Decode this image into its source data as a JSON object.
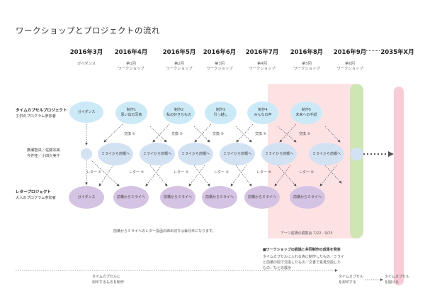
{
  "title": "ワークショップとプロジェクトの流れ",
  "timeline": [
    {
      "year": "2016年3月",
      "sub": "ガイダンス"
    },
    {
      "year": "2016年4月",
      "sub": "第1回\nワークショップ"
    },
    {
      "year": "2016年5月",
      "sub": "第2回\nワークショップ"
    },
    {
      "year": "2016年6月",
      "sub": "第3回\nワークショップ"
    },
    {
      "year": "2016年7月",
      "sub": "第4回\nワークショップ"
    },
    {
      "year": "2016年8月",
      "sub": "第5回\nワークショップ"
    },
    {
      "year": "2016年9月",
      "sub": "第6回\nワークショップ"
    },
    {
      "year": "2035年X月",
      "sub": ""
    }
  ],
  "rows": {
    "timecapsule": {
      "title": "タイムカプセルプロジェクト",
      "sub": "子供のプログラム参加者"
    },
    "instructors": {
      "line1": "廣瀬智央／佐藤宗美",
      "line2": "今井桂／小田久美子"
    },
    "letter": {
      "title": "レタープロジェクト",
      "sub": "大人のプログラム参加者"
    }
  },
  "top_bubbles": [
    {
      "label": "ガイダンス",
      "sub": ""
    },
    {
      "label": "制作1",
      "sub": "思い出の写真"
    },
    {
      "label": "制作2",
      "sub": "私の好きなもの"
    },
    {
      "label": "制作3",
      "sub": "引っ越し"
    },
    {
      "label": "制作4",
      "sub": "みんなの声"
    },
    {
      "label": "制作5",
      "sub": "未来への手紙"
    }
  ],
  "mid_bubbles": [
    "ミライから前橋へ",
    "ミライから前橋へ",
    "ミライから前橋へ",
    "ミライから前橋へ",
    "ミライから前橋へ",
    "ミライから前橋へ"
  ],
  "bottom_bubbles": [
    "ガイダンス",
    "前橋からミライへ",
    "前橋からミライへ",
    "前橋からミライへ",
    "前橋からミライへ",
    "前橋からミライへ"
  ],
  "exchange_labels": [
    "交換 ①",
    "交換 ②",
    "交換 ③",
    "交換 ④",
    "交換 ⑤"
  ],
  "letter_labels": [
    "レター ①",
    "レター ②",
    "レター ③",
    "レター ④",
    "レター ⑤",
    "レター ⑥"
  ],
  "notes": {
    "letter_cut": "前橋からミライへのレター投函の締め切りは毎月末になります。",
    "exhibition": "アーツ前橋の展覧会 7/22 - 9/25",
    "result_title": "■ワークショップの経過と共同制作の成果を発表",
    "result_line1": "タイムカプセルに入れる為に制作したもの／ミライ",
    "result_line2": "と前橋の間で交換したもの／文書で意見交換した",
    "result_line3": "もの／などの展示",
    "footer_a": "タイムカプセルに\n封印するものを制作",
    "footer_b": "タイムカプセル\nを封印する",
    "footer_c": "タイムカプセル\nを開ける"
  },
  "colors": {
    "exhibition_band": "#fde2e4",
    "green_band": "#cfe5b4",
    "pink_band": "#f9cbd6",
    "bubble_blue": "#cce9f7",
    "bubble_lightblue": "#d3e2f3",
    "bubble_purple": "#d5c3e3"
  }
}
